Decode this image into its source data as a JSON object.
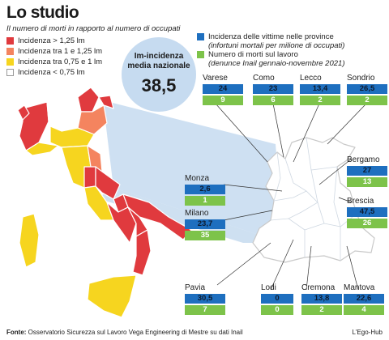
{
  "title": "Lo studio",
  "subtitle": "Il numero di morti in rapporto al numero di occupati",
  "legend_incidence": [
    {
      "label": "Incidenza > 1,25 lm",
      "color": "#e03a3e"
    },
    {
      "label": "Incidenza tra 1 e 1,25 lm",
      "color": "#f4845f"
    },
    {
      "label": "Incidenza tra 0,75 e 1 lm",
      "color": "#f6d51f"
    },
    {
      "label": "Incidenza < 0,75 lm",
      "color": "#ffffff"
    }
  ],
  "legend_series": [
    {
      "label": "Incidenza delle vittime nelle province",
      "sublabel": "(infortuni mortali per milione di occupati)",
      "color": "#1e6fbf"
    },
    {
      "label": "Numero  di morti sul lavoro",
      "sublabel": "(denunce Inail gennaio-novembre 2021)",
      "color": "#7dc34a"
    }
  ],
  "national": {
    "line1": "Im-incidenza",
    "line2": "media nazionale",
    "value": "38,5"
  },
  "provinces": [
    {
      "name": "Varese",
      "incidence": "24",
      "deaths": "9"
    },
    {
      "name": "Como",
      "incidence": "23",
      "deaths": "6"
    },
    {
      "name": "Lecco",
      "incidence": "13,4",
      "deaths": "2"
    },
    {
      "name": "Sondrio",
      "incidence": "26,5",
      "deaths": "2"
    },
    {
      "name": "Bergamo",
      "incidence": "27",
      "deaths": "13"
    },
    {
      "name": "Brescia",
      "incidence": "47,5",
      "deaths": "26"
    },
    {
      "name": "Monza",
      "incidence": "2,6",
      "deaths": "1"
    },
    {
      "name": "Milano",
      "incidence": "23,7",
      "deaths": "35"
    },
    {
      "name": "Pavia",
      "incidence": "30,5",
      "deaths": "7"
    },
    {
      "name": "Lodi",
      "incidence": "0",
      "deaths": "0"
    },
    {
      "name": "Cremona",
      "incidence": "13,8",
      "deaths": "2"
    },
    {
      "name": "Mantova",
      "incidence": "22,6",
      "deaths": "4"
    }
  ],
  "footer": {
    "label": "Fonte:",
    "text": " Osservatorio Sicurezza sul Lavoro Vega Engineering di Mestre su dati Inail",
    "credit": "L'Ego-Hub"
  }
}
